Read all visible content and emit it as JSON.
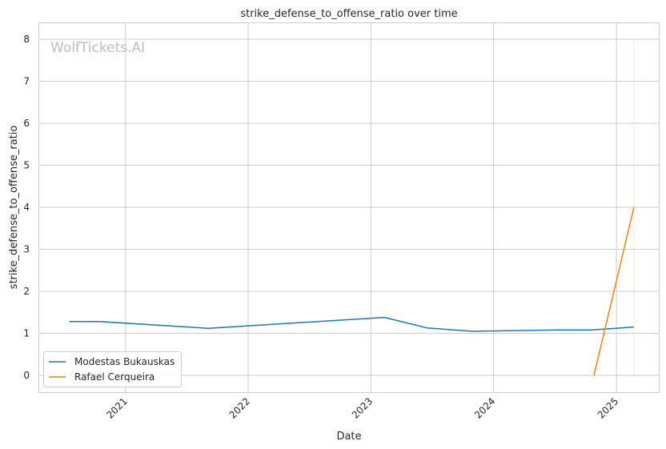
{
  "chart_data": {
    "type": "line",
    "title": "strike_defense_to_offense_ratio over time",
    "xlabel": "Date",
    "ylabel": "strike_defense_to_offense_ratio",
    "watermark": "WolfTickets.AI",
    "xlim": [
      "2020-04-17",
      "2025-05-07"
    ],
    "ylim": [
      -0.4,
      8.4
    ],
    "x_ticks": [
      "2021-01-01",
      "2022-01-01",
      "2023-01-01",
      "2024-01-01",
      "2025-01-01"
    ],
    "x_tick_labels": [
      "2021",
      "2022",
      "2023",
      "2024",
      "2025"
    ],
    "y_ticks": [
      0,
      1,
      2,
      3,
      4,
      5,
      6,
      7,
      8
    ],
    "y_tick_labels": [
      "0",
      "1",
      "2",
      "3",
      "4",
      "5",
      "6",
      "7",
      "8"
    ],
    "grid": true,
    "legend_position": "lower-left",
    "series": [
      {
        "name": "Modestas Bukauskas",
        "color": "#1f77b4",
        "points": [
          {
            "x": "2020-07-18",
            "y": 1.28
          },
          {
            "x": "2020-10-17",
            "y": 1.28
          },
          {
            "x": "2021-09-04",
            "y": 1.12
          },
          {
            "x": "2023-02-11",
            "y": 1.38
          },
          {
            "x": "2023-06-17",
            "y": 1.13
          },
          {
            "x": "2023-10-28",
            "y": 1.05
          },
          {
            "x": "2024-07-13",
            "y": 1.08
          },
          {
            "x": "2024-10-19",
            "y": 1.08
          },
          {
            "x": "2025-02-22",
            "y": 1.15
          }
        ]
      },
      {
        "name": "Rafael Cerqueira",
        "color": "#ff7f0e",
        "points": [
          {
            "x": "2024-10-26",
            "y": 0.0
          },
          {
            "x": "2025-02-22",
            "y": 4.0
          }
        ]
      }
    ]
  }
}
